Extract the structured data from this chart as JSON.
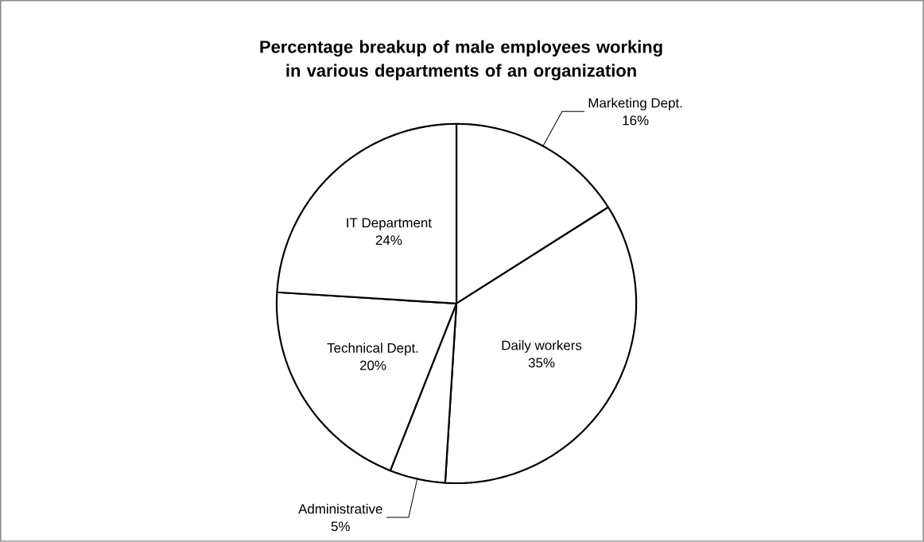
{
  "chart_data": {
    "type": "pie",
    "title": "Percentage breakup of male employees working in various departments of an organization",
    "categories": [
      "Marketing Dept.",
      "Daily workers",
      "Administrative",
      "Technical Dept.",
      "IT Department"
    ],
    "values": [
      16,
      35,
      5,
      20,
      24
    ],
    "value_labels": [
      "16%",
      "35%",
      "5%",
      "20%",
      "24%"
    ],
    "colors": [
      "#ffffff",
      "#ffffff",
      "#ffffff",
      "#ffffff",
      "#ffffff"
    ]
  }
}
